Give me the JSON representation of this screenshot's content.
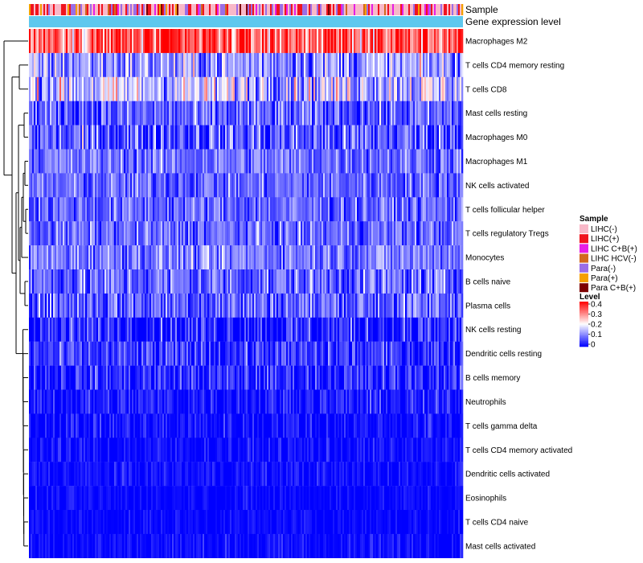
{
  "chart_data": {
    "type": "heatmap",
    "title": "",
    "annotation_tracks": [
      "Sample",
      "Gene expression level"
    ],
    "sample_groups": [
      {
        "name": "LIHC(-)",
        "color": "#f8b8c8"
      },
      {
        "name": "LIHC(+)",
        "color": "#f0141e"
      },
      {
        "name": "LIHC C+B(+)",
        "color": "#e61ee6"
      },
      {
        "name": "LIHC HCV(-)",
        "color": "#d2691e"
      },
      {
        "name": "Para(-)",
        "color": "#9b6ee6"
      },
      {
        "name": "Para(+)",
        "color": "#f5a000"
      },
      {
        "name": "Para C+B(+)",
        "color": "#7d0000"
      }
    ],
    "level_track_color": "#5ec8ee",
    "legend": {
      "sample_title": "Sample",
      "level_title": "Level",
      "level_ticks": [
        "0.4",
        "0.3",
        "0.2",
        "0.1",
        "0"
      ],
      "level_range": [
        0,
        0.4
      ],
      "color_scale": [
        "#0000ff",
        "#ffffff",
        "#ff0000"
      ]
    },
    "rows": [
      {
        "name": "Macrophages M2",
        "mean": 0.33,
        "sd": 0.07
      },
      {
        "name": "T cells CD4 memory resting",
        "mean": 0.12,
        "sd": 0.06
      },
      {
        "name": "T cells CD8",
        "mean": 0.16,
        "sd": 0.07
      },
      {
        "name": "Mast cells resting",
        "mean": 0.07,
        "sd": 0.05
      },
      {
        "name": "Macrophages M0",
        "mean": 0.07,
        "sd": 0.06
      },
      {
        "name": "Macrophages M1",
        "mean": 0.09,
        "sd": 0.04
      },
      {
        "name": "NK cells activated",
        "mean": 0.08,
        "sd": 0.04
      },
      {
        "name": "T cells follicular helper",
        "mean": 0.08,
        "sd": 0.04
      },
      {
        "name": "T cells regulatory  Tregs",
        "mean": 0.08,
        "sd": 0.04
      },
      {
        "name": "Monocytes",
        "mean": 0.1,
        "sd": 0.04
      },
      {
        "name": "B cells naive",
        "mean": 0.08,
        "sd": 0.05
      },
      {
        "name": "Plasma cells",
        "mean": 0.08,
        "sd": 0.05
      },
      {
        "name": "NK cells resting",
        "mean": 0.03,
        "sd": 0.05
      },
      {
        "name": "Dendritic cells resting",
        "mean": 0.04,
        "sd": 0.04
      },
      {
        "name": "B cells memory",
        "mean": 0.03,
        "sd": 0.04
      },
      {
        "name": "Neutrophils",
        "mean": 0.02,
        "sd": 0.03
      },
      {
        "name": "T cells gamma delta",
        "mean": 0.01,
        "sd": 0.03
      },
      {
        "name": "T cells CD4 memory activated",
        "mean": 0.01,
        "sd": 0.02
      },
      {
        "name": "Dendritic cells activated",
        "mean": 0.01,
        "sd": 0.02
      },
      {
        "name": "Eosinophils",
        "mean": 0.005,
        "sd": 0.015
      },
      {
        "name": "T cells CD4 naive",
        "mean": 0.005,
        "sd": 0.015
      },
      {
        "name": "Mast cells activated",
        "mean": 0.01,
        "sd": 0.02
      }
    ]
  }
}
